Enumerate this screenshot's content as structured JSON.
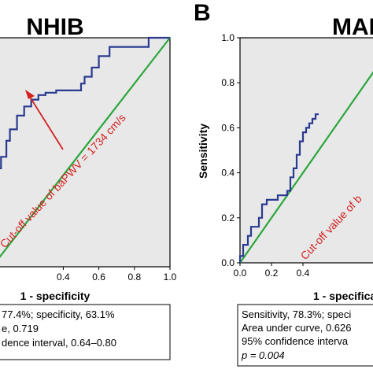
{
  "panel_label_b": "B",
  "chart_data": [
    {
      "type": "line",
      "title": "NHIB",
      "xlabel": "1 - specificity",
      "ylabel": "",
      "xlim": [
        0,
        1
      ],
      "ylim": [
        0,
        1
      ],
      "grid": false,
      "x_ticks": [
        "0.4",
        "0.6",
        "0.8",
        "1.0"
      ],
      "y_ticks": [],
      "series": [
        {
          "color": "#2a3a8f",
          "x": [
            0.0,
            0.0,
            0.02,
            0.02,
            0.05,
            0.05,
            0.08,
            0.08,
            0.1,
            0.1,
            0.14,
            0.14,
            0.18,
            0.18,
            0.22,
            0.22,
            0.26,
            0.26,
            0.3,
            0.3,
            0.36,
            0.36,
            0.5,
            0.5,
            0.52,
            0.52,
            0.56,
            0.56,
            0.6,
            0.6,
            0.66,
            0.66,
            0.88,
            0.88,
            1.0
          ],
          "y": [
            0.35,
            0.38,
            0.38,
            0.43,
            0.43,
            0.48,
            0.48,
            0.55,
            0.55,
            0.6,
            0.6,
            0.66,
            0.66,
            0.7,
            0.7,
            0.73,
            0.73,
            0.75,
            0.75,
            0.76,
            0.76,
            0.77,
            0.77,
            0.8,
            0.8,
            0.83,
            0.83,
            0.87,
            0.87,
            0.92,
            0.92,
            0.96,
            0.96,
            1.0,
            1.0
          ]
        },
        {
          "color": "#2aa63a",
          "x": [
            0,
            1
          ],
          "y": [
            0,
            1
          ]
        }
      ],
      "annotation": "Cut-off value of baPWV = 1734 cm/s",
      "stats": [
        "77.4%; specificity, 63.1%",
        "e, 0.719",
        "dence interval, 0.64–0.80"
      ]
    },
    {
      "type": "line",
      "title": "MAE",
      "xlabel": "1 - specifica",
      "ylabel": "Sensitivity",
      "xlim": [
        0,
        1
      ],
      "ylim": [
        0,
        1
      ],
      "grid": false,
      "x_ticks": [
        "0.0",
        "0.2",
        "0.4"
      ],
      "y_ticks": [
        "0.0",
        "0.2",
        "0.4",
        "0.6",
        "0.8",
        "1.0"
      ],
      "series": [
        {
          "color": "#2a3a8f",
          "x": [
            0.0,
            0.0,
            0.02,
            0.02,
            0.05,
            0.05,
            0.07,
            0.07,
            0.1,
            0.1,
            0.12,
            0.12,
            0.14,
            0.14,
            0.17,
            0.17,
            0.2,
            0.2,
            0.24,
            0.24,
            0.27,
            0.27,
            0.3,
            0.3,
            0.32,
            0.32,
            0.34,
            0.34,
            0.36,
            0.36,
            0.38,
            0.38,
            0.4,
            0.4,
            0.42,
            0.42,
            0.44,
            0.44,
            0.46,
            0.46,
            0.48,
            0.48,
            0.5
          ],
          "y": [
            0.0,
            0.03,
            0.03,
            0.08,
            0.08,
            0.12,
            0.12,
            0.16,
            0.16,
            0.16,
            0.16,
            0.2,
            0.2,
            0.26,
            0.26,
            0.28,
            0.28,
            0.28,
            0.28,
            0.3,
            0.3,
            0.3,
            0.3,
            0.32,
            0.32,
            0.38,
            0.38,
            0.42,
            0.42,
            0.48,
            0.48,
            0.54,
            0.54,
            0.58,
            0.58,
            0.6,
            0.6,
            0.62,
            0.62,
            0.64,
            0.64,
            0.66,
            0.66
          ]
        },
        {
          "color": "#2aa63a",
          "x": [
            0,
            1
          ],
          "y": [
            0,
            1
          ]
        }
      ],
      "annotation": "Cut-off value of b",
      "stats": [
        "Sensitivity, 78.3%; speci",
        "Area under curve, 0.626",
        "95% confidence interva",
        "p = 0.004"
      ]
    }
  ]
}
